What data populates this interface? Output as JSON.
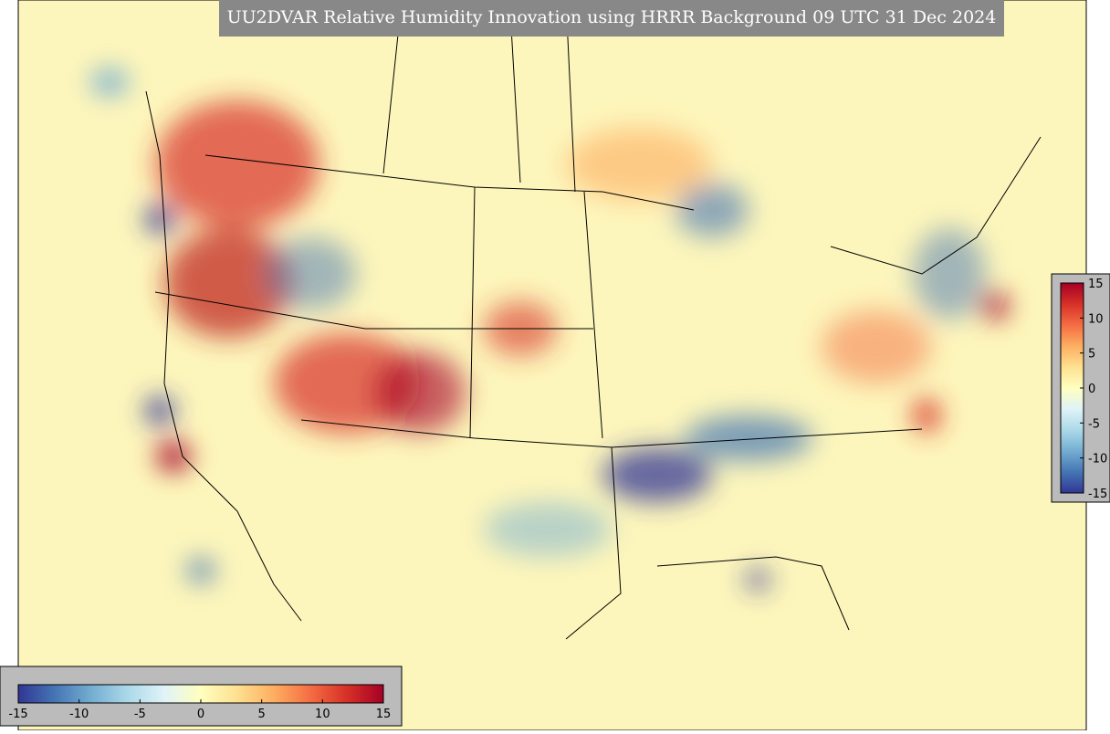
{
  "title": "UU2DVAR Relative Humidity Innovation using HRRR Background 09 UTC 31 Dec 2024",
  "colorbar": {
    "range": [
      -15,
      15
    ],
    "ticks": [
      -15,
      -10,
      -5,
      0,
      5,
      10,
      15
    ],
    "colormap": [
      "#313695",
      "#4575b4",
      "#74add1",
      "#abd9e9",
      "#e0f3f8",
      "#ffffbf",
      "#fee090",
      "#fdae61",
      "#f46d43",
      "#d73027",
      "#a50026"
    ]
  }
}
